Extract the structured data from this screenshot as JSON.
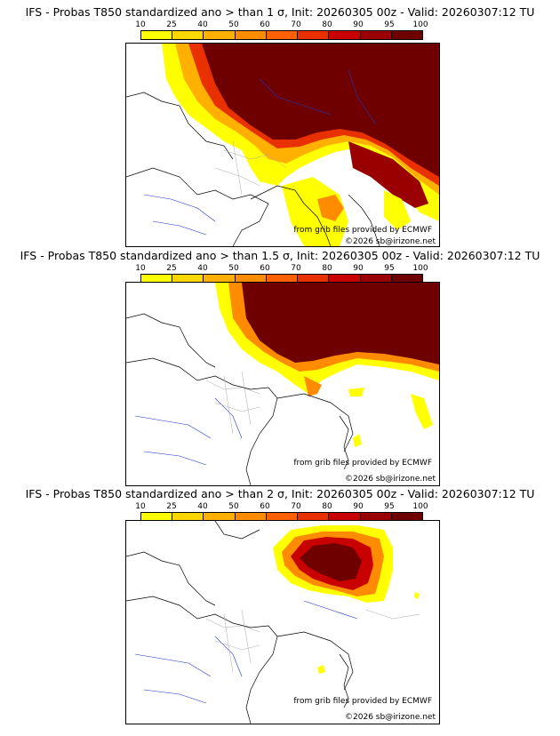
{
  "panels": [
    {
      "title": "IFS - Probas T850  standardized ano > than 1 σ, Init: 20260305 00z - Valid: 20260307:12 TU"
    },
    {
      "title": "IFS - Probas T850  standardized ano > than 1.5 σ, Init: 20260305 00z - Valid: 20260307:12 TU"
    },
    {
      "title": "IFS - Probas T850  standardized ano > than 2 σ, Init: 20260305 00z - Valid: 20260307:12 TU"
    }
  ],
  "colorbar": {
    "labels": [
      "10",
      "25",
      "40",
      "50",
      "60",
      "70",
      "80",
      "90",
      "95",
      "100"
    ],
    "colors": [
      "#ffff00",
      "#ffd700",
      "#ffb000",
      "#ff8c00",
      "#ff6000",
      "#e83000",
      "#c80000",
      "#9a0000",
      "#6e0000"
    ]
  },
  "credits": {
    "source": "from grib files provided by ECMWF",
    "copyright": "©2026 sb@irizone.net"
  }
}
